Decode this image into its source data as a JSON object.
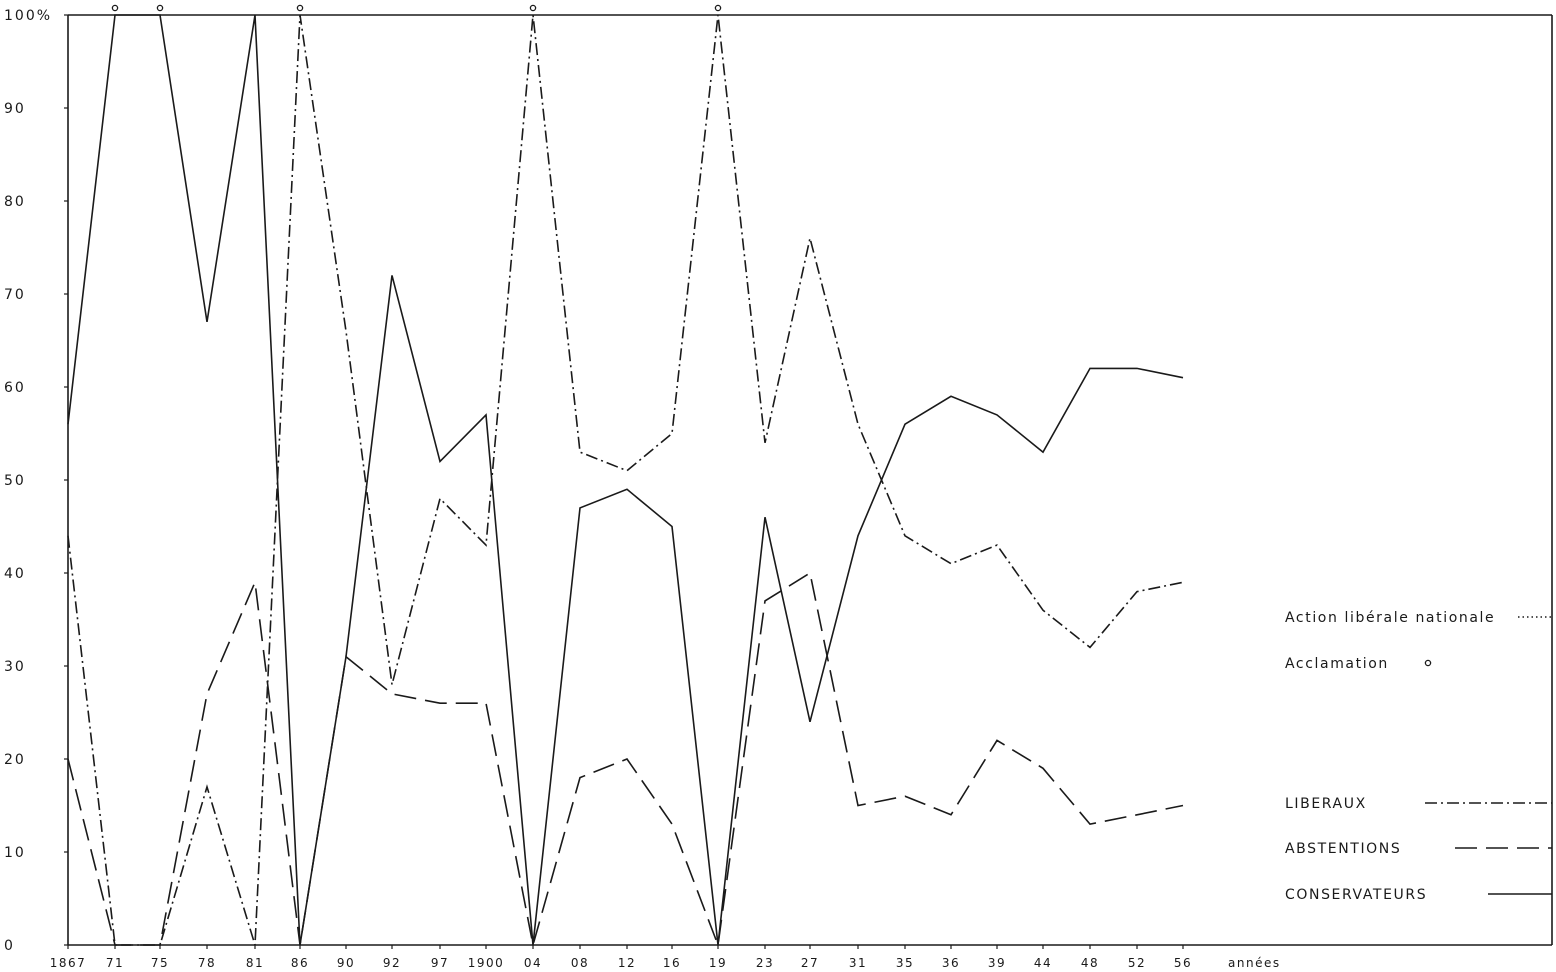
{
  "chart_data": {
    "type": "line",
    "title": "",
    "xlabel": "années",
    "ylabel": "",
    "ylim": [
      0,
      100
    ],
    "grid": false,
    "legend_position": "right",
    "y_ticks": [
      {
        "value": 0,
        "label": "0"
      },
      {
        "value": 10,
        "label": "10"
      },
      {
        "value": 20,
        "label": "20"
      },
      {
        "value": 30,
        "label": "30"
      },
      {
        "value": 40,
        "label": "40"
      },
      {
        "value": 50,
        "label": "50"
      },
      {
        "value": 60,
        "label": "60"
      },
      {
        "value": 70,
        "label": "70"
      },
      {
        "value": 80,
        "label": "80"
      },
      {
        "value": 90,
        "label": "90"
      },
      {
        "value": 100,
        "label": "100%"
      }
    ],
    "categories": [
      "1867",
      "71",
      "75",
      "78",
      "81",
      "86",
      "90",
      "92",
      "97",
      "1900",
      "04",
      "08",
      "12",
      "16",
      "19",
      "23",
      "27",
      "31",
      "35",
      "36",
      "39",
      "44",
      "48",
      "52",
      "56"
    ],
    "series": [
      {
        "name": "CONSERVATEURS",
        "style": "solid",
        "values": [
          56,
          100,
          100,
          67,
          100,
          0,
          31,
          72,
          52,
          57,
          0,
          47,
          49,
          45,
          0,
          46,
          24,
          44,
          56,
          59,
          57,
          53,
          62,
          62,
          61
        ]
      },
      {
        "name": "LIBERAUX",
        "style": "dashdot",
        "values": [
          44,
          0,
          0,
          17,
          0,
          100,
          66,
          28,
          48,
          43,
          100,
          53,
          51,
          55,
          100,
          54,
          76,
          56,
          44,
          41,
          43,
          36,
          32,
          38,
          39
        ]
      },
      {
        "name": "ABSTENTIONS",
        "style": "dashed",
        "values": [
          20,
          0,
          0,
          27,
          39,
          0,
          31,
          27,
          26,
          26,
          0,
          18,
          20,
          13,
          0,
          37,
          40,
          15,
          16,
          14,
          22,
          19,
          13,
          14,
          15
        ]
      }
    ],
    "acclamation_years": [
      "71",
      "75",
      "86",
      "04",
      "19"
    ],
    "legend": [
      {
        "label": "Action libérale nationale",
        "style": "dotted"
      },
      {
        "label": "Acclamation",
        "style": "circle"
      },
      {
        "label": "LIBERAUX",
        "style": "dashdot"
      },
      {
        "label": "ABSTENTIONS",
        "style": "dashed"
      },
      {
        "label": "CONSERVATEURS",
        "style": "solid"
      }
    ],
    "colors": {
      "ink": "#1a1a1a",
      "background": "#ffffff"
    }
  }
}
